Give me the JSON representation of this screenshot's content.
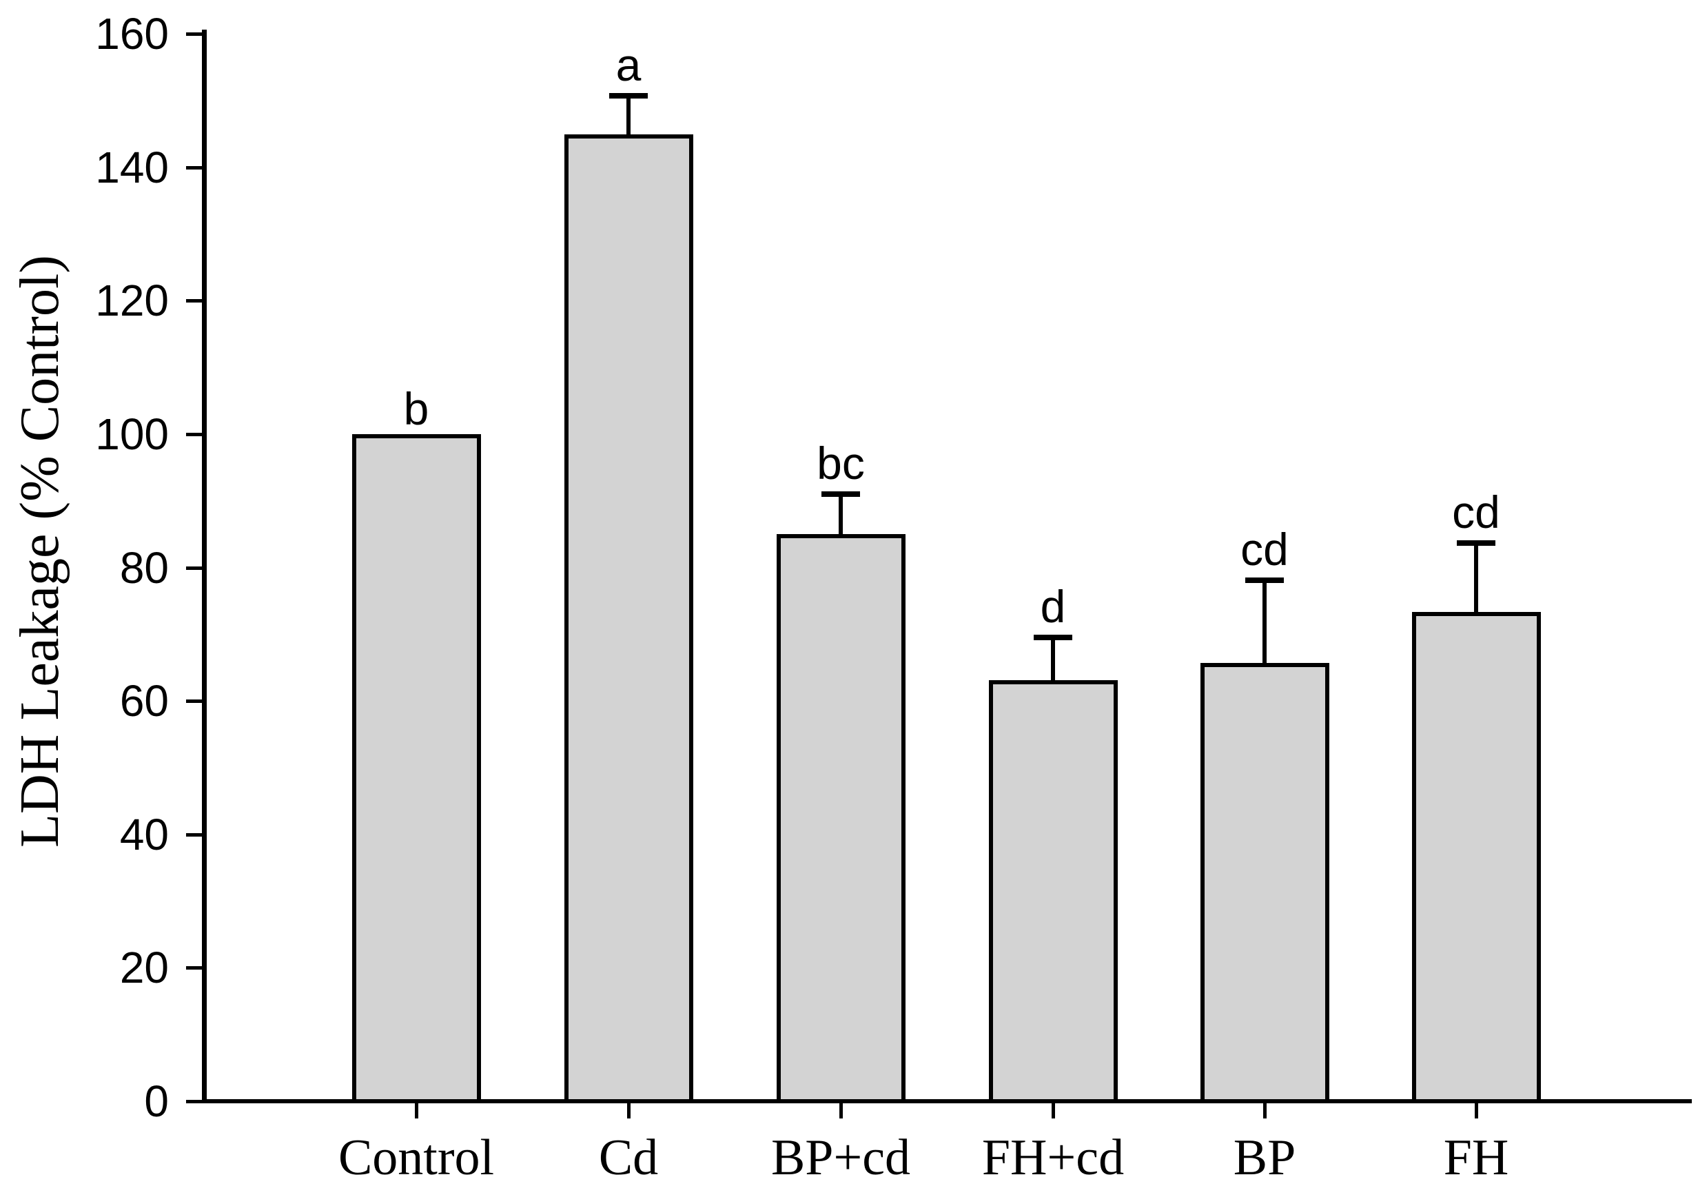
{
  "chart_data": {
    "type": "bar",
    "title": "",
    "xlabel": "",
    "ylabel": "LDH Leakage (% Control)",
    "ylim": [
      0,
      160
    ],
    "yticks": [
      0,
      20,
      40,
      60,
      80,
      100,
      120,
      140,
      160
    ],
    "grid": false,
    "legend_position": "none",
    "categories": [
      "Control",
      "Cd",
      "BP+cd",
      "FH+cd",
      "BP",
      "FH"
    ],
    "series": [
      {
        "name": "LDH Leakage (% Control)",
        "values": [
          100,
          144.9,
          85.0,
          63.1,
          65.7,
          73.3
        ]
      }
    ],
    "errors_plus": [
      0,
      5.8,
      6.0,
      6.4,
      12.4,
      10.4
    ],
    "significance_letters": [
      "b",
      "a",
      "bc",
      "d",
      "cd",
      "cd"
    ],
    "bar_fill_color": "#d3d3d3",
    "bar_stroke_color": "#000000",
    "axis_color": "#000000",
    "background_color": "#ffffff"
  }
}
